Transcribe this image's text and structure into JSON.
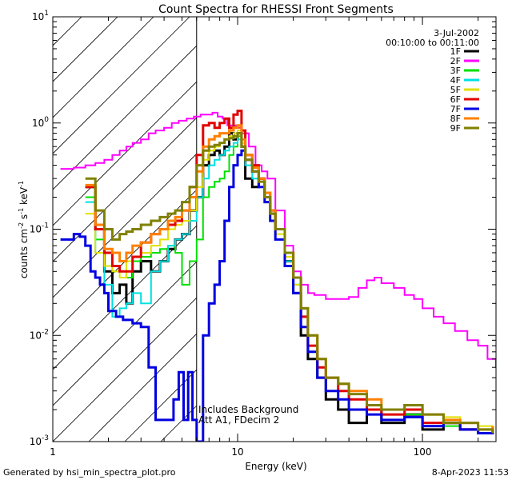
{
  "chart_data": {
    "type": "line",
    "title": "Count Spectra for RHESSI Front Segments",
    "xlabel": "Energy (keV)",
    "ylabel": "counts cm",
    "ylabel_sup1": "-2",
    "ylabel_mid": " s",
    "ylabel_sup2": "-1",
    "ylabel_tail": " keV",
    "ylabel_sup3": "-1",
    "xscale": "log",
    "yscale": "log",
    "xlim": [
      1,
      250
    ],
    "ylim": [
      0.001,
      10
    ],
    "x_ticks": [
      {
        "value": 1,
        "label": "1"
      },
      {
        "value": 10,
        "label": "10"
      },
      {
        "value": 100,
        "label": "100"
      }
    ],
    "y_ticks": [
      {
        "value": 0.001,
        "base": "10",
        "exp": "-3"
      },
      {
        "value": 0.01,
        "base": "10",
        "exp": "-2"
      },
      {
        "value": 0.1,
        "base": "10",
        "exp": "-1"
      },
      {
        "value": 1,
        "base": "10",
        "exp": "0"
      },
      {
        "value": 10,
        "base": "10",
        "exp": "1"
      }
    ],
    "date": "3-Jul-2002",
    "time_range": "00:10:00 to 00:11:00",
    "annotation_lines": [
      "Includes Background",
      "Att A1, FDecim 2"
    ],
    "attenuator_edge_kev": 6,
    "series": [
      {
        "name": "1F",
        "color": "#000000",
        "width": 3,
        "x": [
          1.5,
          1.7,
          1.9,
          2.1,
          2.3,
          2.5,
          2.7,
          3.0,
          3.4,
          3.8,
          4.2,
          4.6,
          5.0,
          5.5,
          6.0,
          6.5,
          7.0,
          7.5,
          8.0,
          8.5,
          9.0,
          9.5,
          10.0,
          10.5,
          11.0,
          12.0,
          13.0,
          14.0,
          15.0,
          16.0,
          18.0,
          20.0,
          22.0,
          24.0,
          27.0,
          30.0,
          35.0,
          40.0,
          50.0,
          60.0,
          80.0,
          100.0,
          130.0,
          160.0,
          200.0,
          240.0
        ],
        "y": [
          0.25,
          0.1,
          0.04,
          0.025,
          0.03,
          0.02,
          0.04,
          0.05,
          0.04,
          0.05,
          0.065,
          0.08,
          0.09,
          0.15,
          0.2,
          0.4,
          0.5,
          0.55,
          0.5,
          0.6,
          0.8,
          0.7,
          0.8,
          0.6,
          0.3,
          0.25,
          0.3,
          0.2,
          0.15,
          0.1,
          0.05,
          0.025,
          0.01,
          0.006,
          0.004,
          0.0025,
          0.002,
          0.0015,
          0.002,
          0.0015,
          0.0018,
          0.0013,
          0.0015,
          0.0013,
          0.0012,
          0.0014
        ]
      },
      {
        "name": "2F",
        "color": "#ff00ff",
        "width": 2,
        "x": [
          1.1,
          1.3,
          1.5,
          1.7,
          1.9,
          2.1,
          2.3,
          2.5,
          2.7,
          3.0,
          3.3,
          3.6,
          4.0,
          4.4,
          4.8,
          5.3,
          5.8,
          6.3,
          6.8,
          7.3,
          7.8,
          8.3,
          8.8,
          9.3,
          9.8,
          10.5,
          11.5,
          12.5,
          13.5,
          14.5,
          16.0,
          18.0,
          20.0,
          22.0,
          24.0,
          26.0,
          30.0,
          35.0,
          40.0,
          45.0,
          50.0,
          55.0,
          60.0,
          70.0,
          80.0,
          90.0,
          100.0,
          115.0,
          130.0,
          150.0,
          175.0,
          200.0,
          225.0,
          250.0
        ],
        "y": [
          0.37,
          0.38,
          0.4,
          0.42,
          0.45,
          0.5,
          0.55,
          0.6,
          0.65,
          0.7,
          0.8,
          0.85,
          0.9,
          1.0,
          1.05,
          1.1,
          1.15,
          1.2,
          1.2,
          1.25,
          1.15,
          1.1,
          0.95,
          0.95,
          0.9,
          0.8,
          0.6,
          0.4,
          0.35,
          0.3,
          0.15,
          0.07,
          0.04,
          0.03,
          0.025,
          0.024,
          0.022,
          0.022,
          0.023,
          0.028,
          0.033,
          0.035,
          0.031,
          0.028,
          0.024,
          0.022,
          0.018,
          0.015,
          0.013,
          0.011,
          0.009,
          0.008,
          0.006,
          0.005
        ]
      },
      {
        "name": "3F",
        "color": "#00e000",
        "width": 2,
        "x": [
          1.5,
          1.7,
          1.9,
          2.1,
          2.3,
          2.5,
          2.7,
          3.0,
          3.4,
          3.8,
          4.2,
          4.6,
          5.0,
          5.5,
          6.0,
          6.5,
          7.0,
          7.5,
          8.0,
          8.5,
          9.0,
          9.5,
          10.0,
          10.5,
          11.0,
          12.0,
          13.0,
          14.0,
          15.0,
          16.0,
          18.0,
          20.0,
          22.0,
          24.0,
          27.0,
          30.0,
          35.0,
          40.0,
          50.0,
          60.0,
          80.0,
          100.0,
          130.0,
          160.0,
          200.0,
          240.0
        ],
        "y": [
          0.2,
          0.08,
          0.045,
          0.04,
          0.04,
          0.035,
          0.05,
          0.055,
          0.06,
          0.065,
          0.07,
          0.06,
          0.03,
          0.05,
          0.08,
          0.2,
          0.25,
          0.28,
          0.3,
          0.35,
          0.5,
          0.6,
          0.75,
          0.65,
          0.5,
          0.35,
          0.25,
          0.2,
          0.12,
          0.08,
          0.05,
          0.03,
          0.015,
          0.007,
          0.004,
          0.003,
          0.0025,
          0.002,
          0.0018,
          0.0016,
          0.0018,
          0.0015,
          0.0014,
          0.0015,
          0.0013,
          0.0014
        ]
      },
      {
        "name": "4F",
        "color": "#00e0e0",
        "width": 2,
        "x": [
          1.5,
          1.7,
          1.9,
          2.1,
          2.3,
          2.5,
          2.7,
          3.0,
          3.4,
          3.8,
          4.2,
          4.6,
          5.0,
          5.5,
          6.0,
          6.5,
          7.0,
          7.5,
          8.0,
          8.5,
          9.0,
          9.5,
          10.0,
          10.5,
          11.0,
          12.0,
          13.0,
          14.0,
          15.0,
          16.0,
          18.0,
          20.0,
          22.0,
          24.0,
          27.0,
          30.0,
          35.0,
          40.0,
          50.0,
          60.0,
          80.0,
          100.0,
          130.0,
          160.0,
          200.0,
          240.0
        ],
        "y": [
          0.18,
          0.06,
          0.03,
          0.015,
          0.018,
          0.02,
          0.025,
          0.02,
          0.04,
          0.05,
          0.07,
          0.08,
          0.09,
          0.12,
          0.2,
          0.3,
          0.4,
          0.45,
          0.5,
          0.55,
          0.6,
          0.65,
          0.7,
          0.6,
          0.4,
          0.3,
          0.25,
          0.18,
          0.12,
          0.08,
          0.05,
          0.03,
          0.015,
          0.008,
          0.005,
          0.004,
          0.003,
          0.003,
          0.0025,
          0.002,
          0.002,
          0.0018,
          0.0015,
          0.0015,
          0.0013,
          0.0012
        ]
      },
      {
        "name": "5F",
        "color": "#e0e000",
        "width": 2,
        "x": [
          1.5,
          1.7,
          1.9,
          2.1,
          2.3,
          2.5,
          2.7,
          3.0,
          3.4,
          3.8,
          4.2,
          4.6,
          5.0,
          5.5,
          6.0,
          6.5,
          7.0,
          7.5,
          8.0,
          8.5,
          9.0,
          9.5,
          10.0,
          10.5,
          11.0,
          12.0,
          13.0,
          14.0,
          15.0,
          16.0,
          18.0,
          20.0,
          22.0,
          24.0,
          27.0,
          30.0,
          35.0,
          40.0,
          50.0,
          60.0,
          80.0,
          100.0,
          130.0,
          160.0,
          200.0,
          240.0
        ],
        "y": [
          0.14,
          0.06,
          0.045,
          0.04,
          0.035,
          0.05,
          0.055,
          0.06,
          0.07,
          0.08,
          0.1,
          0.11,
          0.12,
          0.15,
          0.25,
          0.45,
          0.55,
          0.6,
          0.65,
          0.7,
          0.75,
          0.8,
          0.85,
          0.65,
          0.45,
          0.35,
          0.3,
          0.2,
          0.14,
          0.09,
          0.055,
          0.03,
          0.015,
          0.008,
          0.005,
          0.004,
          0.003,
          0.003,
          0.0025,
          0.002,
          0.0022,
          0.0018,
          0.0017,
          0.0015,
          0.0014,
          0.0014
        ]
      },
      {
        "name": "6F",
        "color": "#e00000",
        "width": 3,
        "x": [
          1.5,
          1.7,
          1.9,
          2.1,
          2.3,
          2.5,
          2.7,
          3.0,
          3.4,
          3.8,
          4.2,
          4.6,
          5.0,
          5.5,
          6.0,
          6.5,
          7.0,
          7.5,
          8.0,
          8.5,
          9.0,
          9.5,
          10.0,
          10.5,
          11.0,
          12.0,
          13.0,
          14.0,
          15.0,
          16.0,
          18.0,
          20.0,
          22.0,
          24.0,
          27.0,
          30.0,
          35.0,
          40.0,
          50.0,
          60.0,
          80.0,
          100.0,
          130.0,
          160.0,
          200.0,
          240.0
        ],
        "y": [
          0.25,
          0.1,
          0.06,
          0.045,
          0.04,
          0.04,
          0.055,
          0.075,
          0.09,
          0.1,
          0.11,
          0.12,
          0.15,
          0.25,
          0.5,
          0.95,
          1.0,
          0.9,
          1.0,
          1.1,
          0.9,
          1.2,
          1.3,
          0.85,
          0.5,
          0.4,
          0.3,
          0.22,
          0.14,
          0.1,
          0.06,
          0.035,
          0.015,
          0.008,
          0.005,
          0.004,
          0.003,
          0.0025,
          0.002,
          0.0018,
          0.002,
          0.0015,
          0.0015,
          0.0013,
          0.0012,
          0.0013
        ]
      },
      {
        "name": "7F",
        "color": "#0000e0",
        "width": 3,
        "x": [
          1.1,
          1.2,
          1.3,
          1.4,
          1.5,
          1.6,
          1.7,
          1.8,
          1.9,
          2.0,
          2.2,
          2.4,
          2.7,
          3.0,
          3.3,
          3.6,
          3.9,
          4.2,
          4.5,
          4.8,
          5.1,
          5.4,
          5.7,
          6.0,
          6.5,
          7.0,
          7.5,
          8.0,
          8.5,
          9.0,
          9.5,
          10.0,
          10.5,
          11.0,
          12.0,
          13.0,
          14.0,
          15.0,
          16.0,
          18.0,
          20.0,
          22.0,
          24.0,
          27.0,
          30.0,
          35.0,
          40.0,
          50.0,
          60.0,
          80.0,
          100.0,
          130.0,
          160.0,
          200.0,
          240.0
        ],
        "y": [
          0.08,
          0.08,
          0.09,
          0.085,
          0.07,
          0.04,
          0.035,
          0.03,
          0.025,
          0.017,
          0.015,
          0.014,
          0.013,
          0.012,
          0.005,
          0.0016,
          0.0016,
          0.0016,
          0.0025,
          0.0045,
          0.0016,
          0.0045,
          0.0016,
          0.001,
          0.01,
          0.02,
          0.03,
          0.05,
          0.12,
          0.25,
          0.4,
          0.5,
          0.55,
          0.45,
          0.35,
          0.25,
          0.18,
          0.12,
          0.08,
          0.045,
          0.025,
          0.012,
          0.007,
          0.004,
          0.003,
          0.0025,
          0.002,
          0.0018,
          0.0016,
          0.0017,
          0.0014,
          0.0015,
          0.0013,
          0.0012,
          0.0013
        ]
      },
      {
        "name": "8F",
        "color": "#ff8000",
        "width": 3,
        "x": [
          1.5,
          1.7,
          1.9,
          2.1,
          2.3,
          2.5,
          2.7,
          3.0,
          3.4,
          3.8,
          4.2,
          4.6,
          5.0,
          5.5,
          6.0,
          6.5,
          7.0,
          7.5,
          8.0,
          8.5,
          9.0,
          9.5,
          10.0,
          10.5,
          11.0,
          12.0,
          13.0,
          14.0,
          15.0,
          16.0,
          18.0,
          20.0,
          22.0,
          24.0,
          27.0,
          30.0,
          35.0,
          40.0,
          50.0,
          60.0,
          80.0,
          100.0,
          130.0,
          160.0,
          200.0,
          240.0
        ],
        "y": [
          0.26,
          0.11,
          0.065,
          0.06,
          0.05,
          0.06,
          0.07,
          0.075,
          0.09,
          0.1,
          0.12,
          0.13,
          0.15,
          0.2,
          0.35,
          0.6,
          0.7,
          0.75,
          0.8,
          0.8,
          0.85,
          0.9,
          0.95,
          0.7,
          0.5,
          0.38,
          0.3,
          0.22,
          0.15,
          0.1,
          0.06,
          0.035,
          0.018,
          0.01,
          0.006,
          0.004,
          0.0035,
          0.003,
          0.0025,
          0.002,
          0.0022,
          0.0018,
          0.0016,
          0.0015,
          0.0013,
          0.0014
        ]
      },
      {
        "name": "9F",
        "color": "#808000",
        "width": 3,
        "x": [
          1.5,
          1.7,
          1.9,
          2.1,
          2.3,
          2.5,
          2.7,
          3.0,
          3.4,
          3.8,
          4.2,
          4.6,
          5.0,
          5.5,
          6.0,
          6.5,
          7.0,
          7.5,
          8.0,
          8.5,
          9.0,
          9.5,
          10.0,
          10.5,
          11.0,
          12.0,
          13.0,
          14.0,
          15.0,
          16.0,
          18.0,
          20.0,
          22.0,
          24.0,
          27.0,
          30.0,
          35.0,
          40.0,
          50.0,
          60.0,
          80.0,
          100.0,
          130.0,
          160.0,
          200.0,
          240.0
        ],
        "y": [
          0.3,
          0.15,
          0.1,
          0.08,
          0.09,
          0.095,
          0.1,
          0.11,
          0.12,
          0.13,
          0.14,
          0.15,
          0.18,
          0.25,
          0.4,
          0.55,
          0.6,
          0.62,
          0.65,
          0.7,
          0.72,
          0.75,
          0.8,
          0.6,
          0.45,
          0.35,
          0.28,
          0.2,
          0.14,
          0.1,
          0.06,
          0.035,
          0.018,
          0.01,
          0.006,
          0.004,
          0.0035,
          0.0028,
          0.0022,
          0.002,
          0.0022,
          0.0018,
          0.0015,
          0.0015,
          0.0013,
          0.0012
        ]
      }
    ]
  },
  "footer": {
    "generated_by": "Generated by hsi_min_spectra_plot.pro",
    "timestamp": "8-Apr-2023 11:53"
  }
}
